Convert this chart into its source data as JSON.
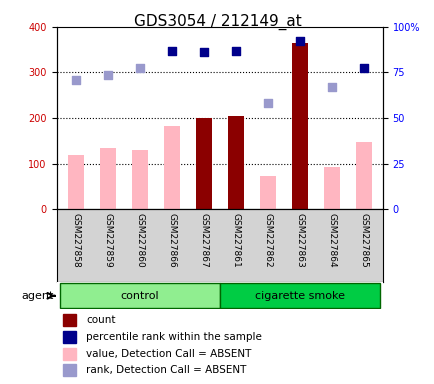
{
  "title": "GDS3054 / 212149_at",
  "samples": [
    "GSM227858",
    "GSM227859",
    "GSM227860",
    "GSM227866",
    "GSM227867",
    "GSM227861",
    "GSM227862",
    "GSM227863",
    "GSM227864",
    "GSM227865"
  ],
  "groups": [
    "control",
    "control",
    "control",
    "control",
    "control",
    "cigarette smoke",
    "cigarette smoke",
    "cigarette smoke",
    "cigarette smoke",
    "cigarette smoke"
  ],
  "group_labels": [
    "control",
    "cigarette smoke"
  ],
  "group_colors": [
    "#90ee90",
    "#00cc00"
  ],
  "bar_values": [
    120,
    135,
    130,
    183,
    200,
    205,
    72,
    365,
    92,
    148
  ],
  "bar_absent": [
    true,
    true,
    true,
    true,
    false,
    false,
    true,
    false,
    true,
    true
  ],
  "rank_values": [
    283,
    295,
    310,
    348,
    345,
    348,
    232,
    370,
    268,
    310
  ],
  "rank_absent": [
    true,
    true,
    true,
    false,
    false,
    false,
    true,
    false,
    true,
    false
  ],
  "ylim_left": [
    0,
    400
  ],
  "ylim_right": [
    0,
    100
  ],
  "yticks_left": [
    0,
    100,
    200,
    300,
    400
  ],
  "yticks_right": [
    0,
    25,
    50,
    75,
    100
  ],
  "ytick_labels_right": [
    "0",
    "25",
    "50",
    "75",
    "100%"
  ],
  "color_bar_present": "#8b0000",
  "color_bar_absent": "#ffb6c1",
  "color_rank_present": "#00008b",
  "color_rank_absent": "#9999cc",
  "bg_plot": "#ffffff",
  "bg_sample": "#d3d3d3",
  "legend_items": [
    {
      "color": "#8b0000",
      "label": "count"
    },
    {
      "color": "#00008b",
      "label": "percentile rank within the sample"
    },
    {
      "color": "#ffb6c1",
      "label": "value, Detection Call = ABSENT"
    },
    {
      "color": "#9999cc",
      "label": "rank, Detection Call = ABSENT"
    }
  ]
}
